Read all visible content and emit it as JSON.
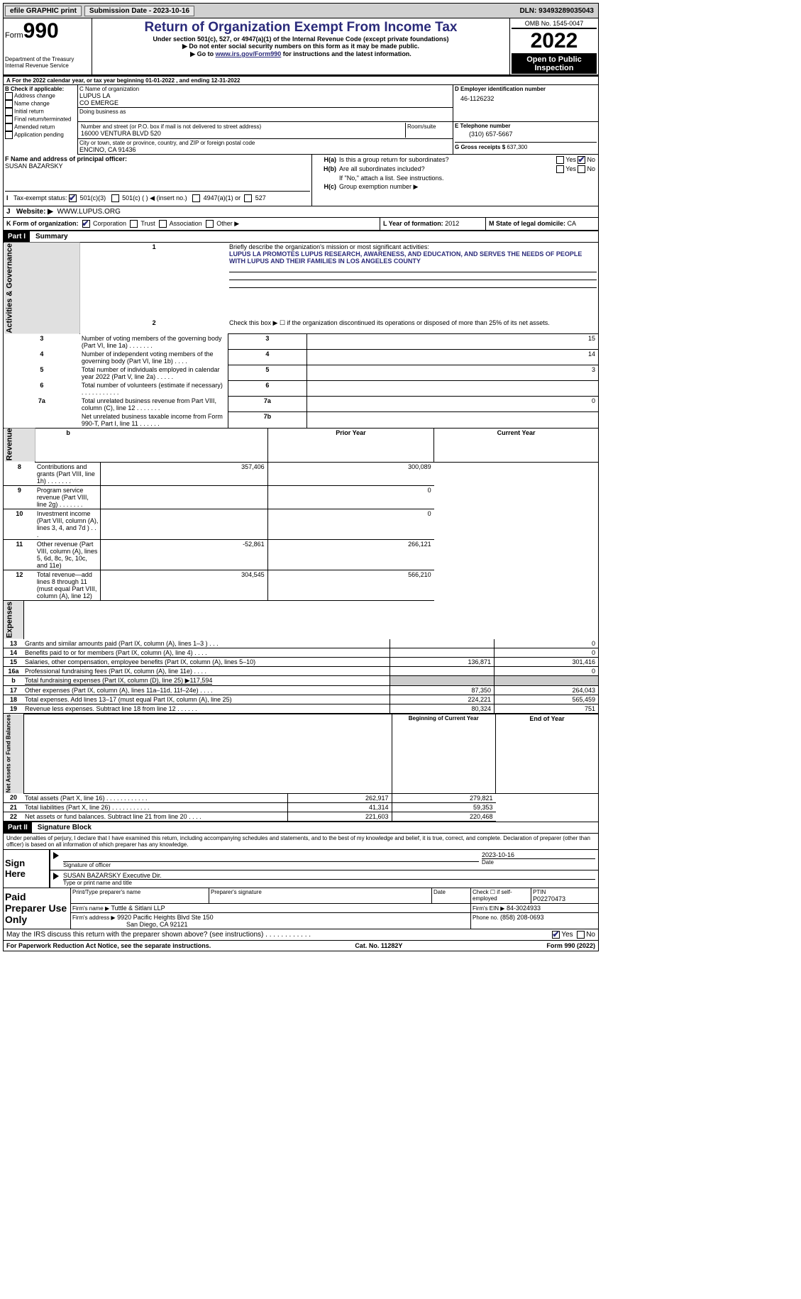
{
  "topbar": {
    "efile": "efile GRAPHIC print",
    "submission": "Submission Date - 2023-10-16",
    "dln": "DLN: 93493289035043"
  },
  "header": {
    "form_label": "Form",
    "form_number": "990",
    "dept": "Department of the Treasury\nInternal Revenue Service",
    "title": "Return of Organization Exempt From Income Tax",
    "sub1": "Under section 501(c), 527, or 4947(a)(1) of the Internal Revenue Code (except private foundations)",
    "sub2": "▶ Do not enter social security numbers on this form as it may be made public.",
    "sub3_pre": "▶ Go to ",
    "sub3_link": "www.irs.gov/Form990",
    "sub3_post": " for instructions and the latest information.",
    "omb": "OMB No. 1545-0047",
    "year": "2022",
    "open": "Open to Public Inspection"
  },
  "A": {
    "text_pre": "For the 2022 calendar year, or tax year beginning ",
    "begin": "01-01-2022",
    "mid": " , and ending ",
    "end": "12-31-2022"
  },
  "B": {
    "label": "B Check if applicable:",
    "items": [
      "Address change",
      "Name change",
      "Initial return",
      "Final return/terminated",
      "Amended return",
      "Application pending"
    ]
  },
  "C": {
    "name_label": "C Name of organization",
    "name1": "LUPUS LA",
    "name2": "CO EMERGE",
    "dba_label": "Doing business as",
    "addr_label": "Number and street (or P.O. box if mail is not delivered to street address)",
    "room_label": "Room/suite",
    "addr": "16000 VENTURA BLVD 520",
    "city_label": "City or town, state or province, country, and ZIP or foreign postal code",
    "city": "ENCINO, CA  91436"
  },
  "D": {
    "label": "D Employer identification number",
    "value": "46-1126232"
  },
  "E": {
    "label": "E Telephone number",
    "value": "(310) 657-5667"
  },
  "G": {
    "label": "G Gross receipts $",
    "value": "637,300"
  },
  "F": {
    "label": "F  Name and address of principal officer:",
    "value": "SUSAN BAZARSKY"
  },
  "H": {
    "a": "Is this a group return for subordinates?",
    "b": "Are all subordinates included?",
    "b_note": "If \"No,\" attach a list. See instructions.",
    "c": "Group exemption number ▶"
  },
  "I": {
    "label": "Tax-exempt status:",
    "opts": [
      "501(c)(3)",
      "501(c) (   ) ◀ (insert no.)",
      "4947(a)(1) or",
      "527"
    ]
  },
  "J": {
    "label": "Website: ▶",
    "value": "WWW.LUPUS.ORG"
  },
  "K": {
    "label": "K Form of organization:",
    "opts": [
      "Corporation",
      "Trust",
      "Association",
      "Other ▶"
    ]
  },
  "L": {
    "label": "L Year of formation:",
    "value": "2012"
  },
  "M": {
    "label": "M State of legal domicile:",
    "value": "CA"
  },
  "part1": {
    "hdr": "Part I",
    "title": "Summary",
    "l1_label": "Briefly describe the organization's mission or most significant activities:",
    "l1_text": "LUPUS LA PROMOTES LUPUS RESEARCH, AWARENESS, AND EDUCATION, AND SERVES THE NEEDS OF PEOPLE WITH LUPUS AND THEIR FAMILIES IN LOS ANGELES COUNTY",
    "l2": "Check this box ▶ ☐ if the organization discontinued its operations or disposed of more than 25% of its net assets.",
    "rows_ag": [
      {
        "n": "3",
        "t": "Number of voting members of the governing body (Part VI, line 1a)  .    .    .    .    .    .    .",
        "box": "3",
        "v": "15"
      },
      {
        "n": "4",
        "t": "Number of independent voting members of the governing body (Part VI, line 1b)   .    .    .    .",
        "box": "4",
        "v": "14"
      },
      {
        "n": "5",
        "t": "Total number of individuals employed in calendar year 2022 (Part V, line 2a)   .    .    .    .    .",
        "box": "5",
        "v": "3"
      },
      {
        "n": "6",
        "t": "Total number of volunteers (estimate if necessary)    .    .    .    .    .    .    .    .    .    .    .",
        "box": "6",
        "v": ""
      },
      {
        "n": "7a",
        "t": "Total unrelated business revenue from Part VIII, column (C), line 12   .    .    .    .    .    .    .",
        "box": "7a",
        "v": "0"
      },
      {
        "n": "",
        "t": "Net unrelated business taxable income from Form 990-T, Part I, line 11   .    .    .    .    .    .",
        "box": "7b",
        "v": ""
      }
    ],
    "col_prior": "Prior Year",
    "col_current": "Current Year",
    "rev": [
      {
        "n": "8",
        "t": "Contributions and grants (Part VIII, line 1h)   .    .    .    .    .    .    .",
        "p": "357,406",
        "c": "300,089"
      },
      {
        "n": "9",
        "t": "Program service revenue (Part VIII, line 2g)   .    .    .    .    .    .    .",
        "p": "",
        "c": "0"
      },
      {
        "n": "10",
        "t": "Investment income (Part VIII, column (A), lines 3, 4, and 7d )   .    .    .",
        "p": "",
        "c": "0"
      },
      {
        "n": "11",
        "t": "Other revenue (Part VIII, column (A), lines 5, 6d, 8c, 9c, 10c, and 11e)",
        "p": "-52,861",
        "c": "266,121"
      },
      {
        "n": "12",
        "t": "Total revenue—add lines 8 through 11 (must equal Part VIII, column (A), line 12)",
        "p": "304,545",
        "c": "566,210"
      }
    ],
    "exp": [
      {
        "n": "13",
        "t": "Grants and similar amounts paid (Part IX, column (A), lines 1–3 )   .    .    .",
        "p": "",
        "c": "0"
      },
      {
        "n": "14",
        "t": "Benefits paid to or for members (Part IX, column (A), line 4)   .    .    .    .",
        "p": "",
        "c": "0"
      },
      {
        "n": "15",
        "t": "Salaries, other compensation, employee benefits (Part IX, column (A), lines 5–10)",
        "p": "136,871",
        "c": "301,416"
      },
      {
        "n": "16a",
        "t": "Professional fundraising fees (Part IX, column (A), line 11e)   .    .    .    .",
        "p": "",
        "c": "0"
      },
      {
        "n": "b",
        "t": "Total fundraising expenses (Part IX, column (D), line 25) ▶117,594",
        "p": "shaded",
        "c": "shaded"
      },
      {
        "n": "17",
        "t": "Other expenses (Part IX, column (A), lines 11a–11d, 11f–24e)   .    .    .    .",
        "p": "87,350",
        "c": "264,043"
      },
      {
        "n": "18",
        "t": "Total expenses. Add lines 13–17 (must equal Part IX, column (A), line 25)",
        "p": "224,221",
        "c": "565,459"
      },
      {
        "n": "19",
        "t": "Revenue less expenses. Subtract line 18 from line 12  .    .    .    .    .    .",
        "p": "80,324",
        "c": "751"
      }
    ],
    "col_begin": "Beginning of Current Year",
    "col_end": "End of Year",
    "net": [
      {
        "n": "20",
        "t": "Total assets (Part X, line 16)  .    .    .    .    .    .    .    .    .    .    .    .",
        "p": "262,917",
        "c": "279,821"
      },
      {
        "n": "21",
        "t": "Total liabilities (Part X, line 26)  .    .    .    .    .    .    .    .    .    .    .",
        "p": "41,314",
        "c": "59,353"
      },
      {
        "n": "22",
        "t": "Net assets or fund balances. Subtract line 21 from line 20   .    .    .    .",
        "p": "221,603",
        "c": "220,468"
      }
    ],
    "side_ag": "Activities & Governance",
    "side_rev": "Revenue",
    "side_exp": "Expenses",
    "side_net": "Net Assets or Fund Balances"
  },
  "part2": {
    "hdr": "Part II",
    "title": "Signature Block",
    "decl": "Under penalties of perjury, I declare that I have examined this return, including accompanying schedules and statements, and to the best of my knowledge and belief, it is true, correct, and complete. Declaration of preparer (other than officer) is based on all information of which preparer has any knowledge.",
    "sign_here": "Sign Here",
    "sig_officer": "Signature of officer",
    "sig_date": "2023-10-16",
    "date_lbl": "Date",
    "name_title": "SUSAN BAZARSKY Executive Dir.",
    "type_lbl": "Type or print name and title",
    "paid": "Paid Preparer Use Only",
    "p_name_lbl": "Print/Type preparer's name",
    "p_sig_lbl": "Preparer's signature",
    "p_date_lbl": "Date",
    "p_check_lbl": "Check ☐ if self-employed",
    "ptin_lbl": "PTIN",
    "ptin": "P02270473",
    "firm_name_lbl": "Firm's name    ▶",
    "firm_name": "Tuttle & Sitlani LLP",
    "firm_ein_lbl": "Firm's EIN ▶",
    "firm_ein": "84-3024933",
    "firm_addr_lbl": "Firm's address ▶",
    "firm_addr1": "9920 Pacific Heights Blvd Ste 150",
    "firm_addr2": "San Diego, CA  92121",
    "phone_lbl": "Phone no.",
    "phone": "(858) 208-0693",
    "discuss": "May the IRS discuss this return with the preparer shown above? (see instructions)   .    .    .    .    .    .    .    .    .    .    .    ."
  },
  "footer": {
    "left": "For Paperwork Reduction Act Notice, see the separate instructions.",
    "mid": "Cat. No. 11282Y",
    "right": "Form 990 (2022)"
  }
}
